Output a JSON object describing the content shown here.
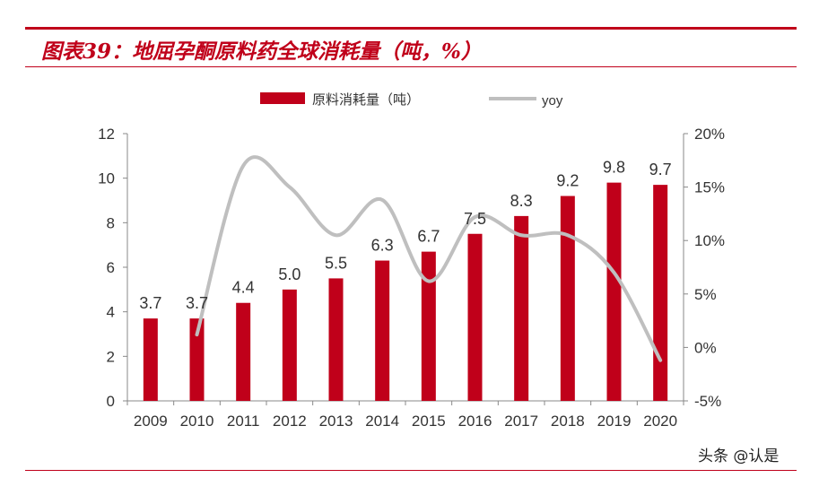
{
  "header": {
    "title": "图表39：地屈孕酮原料药全球消耗量（吨，%）"
  },
  "watermark": "头条 @认是",
  "chart_data": {
    "type": "bar",
    "categories": [
      "2009",
      "2010",
      "2011",
      "2012",
      "2013",
      "2014",
      "2015",
      "2016",
      "2017",
      "2018",
      "2019",
      "2020"
    ],
    "series": [
      {
        "name": "原料消耗量（吨）",
        "type": "bar",
        "axis": "left",
        "values": [
          3.7,
          3.7,
          4.4,
          5.0,
          5.5,
          6.3,
          6.7,
          7.5,
          8.3,
          9.2,
          9.8,
          9.7
        ],
        "labels": [
          "3.7",
          "3.7",
          "4.4",
          "5.0",
          "5.5",
          "6.3",
          "6.7",
          "7.5",
          "8.3",
          "9.2",
          "9.8",
          "9.7"
        ]
      },
      {
        "name": "yoy",
        "type": "line",
        "axis": "right",
        "values": [
          null,
          1.2,
          17.0,
          15.0,
          10.5,
          13.8,
          6.2,
          12.2,
          10.5,
          10.5,
          7.0,
          -1.2
        ]
      }
    ],
    "left_axis": {
      "ylim": [
        0,
        12
      ],
      "ticks": [
        "0",
        "2",
        "4",
        "6",
        "8",
        "10",
        "12"
      ]
    },
    "right_axis": {
      "ylim": [
        -5,
        20
      ],
      "ticks": [
        "-5%",
        "0%",
        "5%",
        "10%",
        "15%",
        "20%"
      ]
    },
    "legend": "top-center",
    "grid": false,
    "colors": {
      "bar": "#c0001a",
      "line": "#bfbfbf",
      "accent": "#c0001a"
    }
  }
}
